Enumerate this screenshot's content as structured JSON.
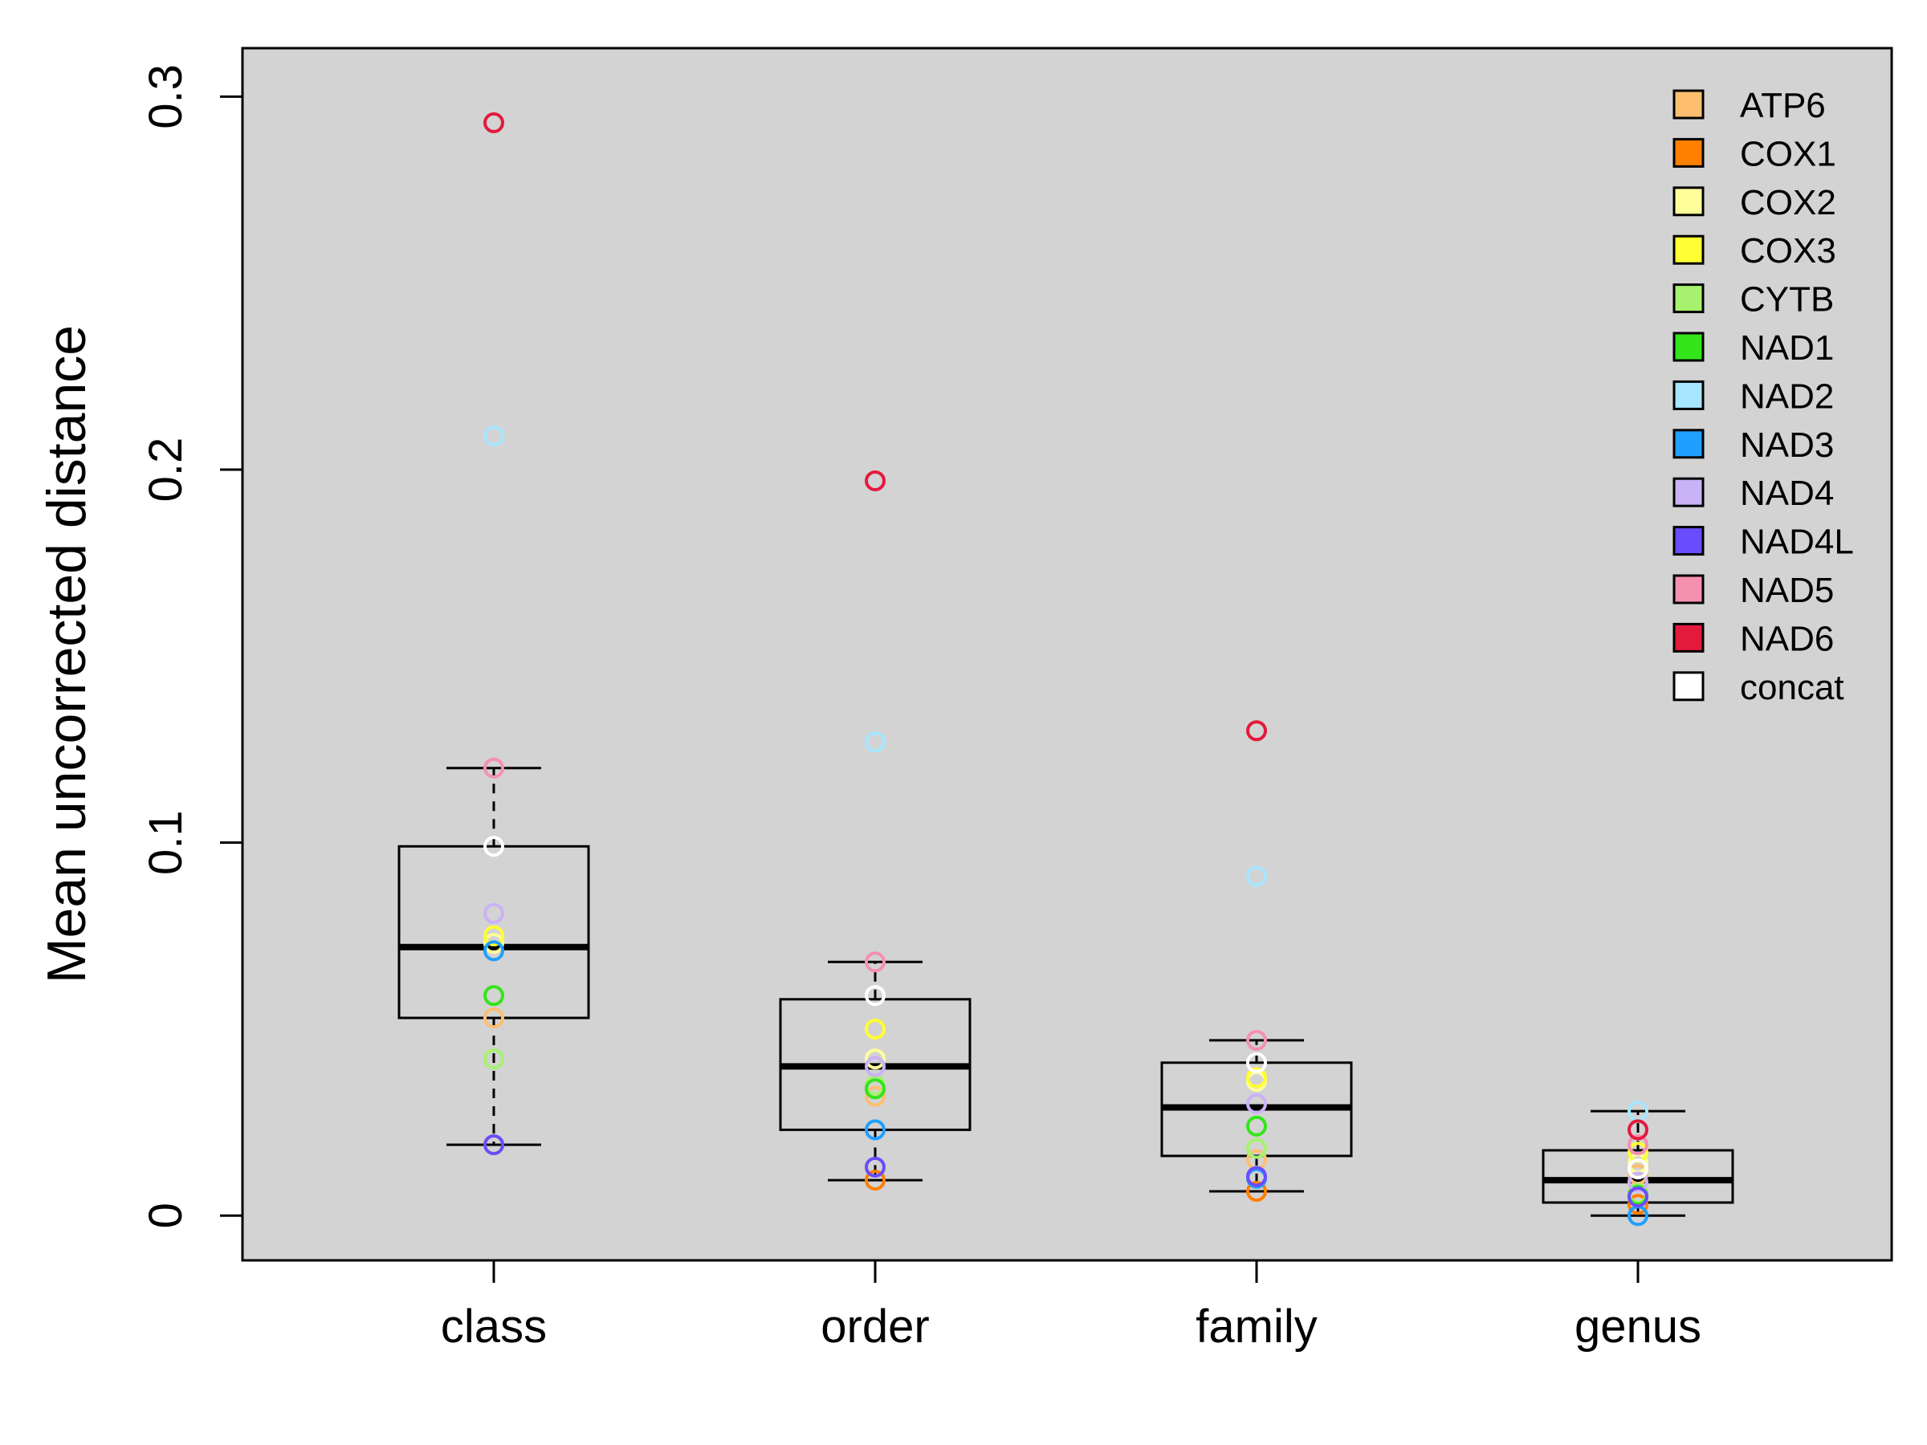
{
  "chart_data": {
    "type": "box",
    "title": "",
    "xlabel": "",
    "ylabel": "Mean uncorrected distance",
    "ylim": [
      -0.012,
      0.313
    ],
    "yticks": [
      0,
      0.1,
      0.2,
      0.3
    ],
    "ytick_labels": [
      "0",
      "0.1",
      "0.2",
      "0.3"
    ],
    "plot_background": "#d3d3d3",
    "grid": false,
    "legend_position": "top-right",
    "categories": [
      "class",
      "order",
      "family",
      "genus"
    ],
    "boxes": [
      {
        "category": "class",
        "whisker_low": 0.019,
        "q1": 0.053,
        "median": 0.072,
        "q3": 0.099,
        "whisker_high": 0.12
      },
      {
        "category": "order",
        "whisker_low": 0.0095,
        "q1": 0.023,
        "median": 0.04,
        "q3": 0.058,
        "whisker_high": 0.068
      },
      {
        "category": "family",
        "whisker_low": 0.0065,
        "q1": 0.016,
        "median": 0.029,
        "q3": 0.041,
        "whisker_high": 0.047
      },
      {
        "category": "genus",
        "whisker_low": 0.0,
        "q1": 0.0035,
        "median": 0.0095,
        "q3": 0.0175,
        "whisker_high": 0.028
      }
    ],
    "series": [
      {
        "name": "ATP6",
        "color": "#fdbf6f",
        "values": [
          0.053,
          0.032,
          0.015,
          0.011
        ]
      },
      {
        "name": "COX1",
        "color": "#ff7f00",
        "values": [
          0.019,
          0.0095,
          0.0065,
          0.003
        ]
      },
      {
        "name": "COX2",
        "color": "#ffff99",
        "values": [
          0.073,
          0.042,
          0.036,
          0.014
        ]
      },
      {
        "name": "COX3",
        "color": "#ffff33",
        "values": [
          0.075,
          0.05,
          0.037,
          0.017
        ]
      },
      {
        "name": "CYTB",
        "color": "#a6f26f",
        "values": [
          0.042,
          0.035,
          0.018,
          0.006
        ]
      },
      {
        "name": "NAD1",
        "color": "#33e51a",
        "values": [
          0.059,
          0.034,
          0.024,
          0.0055
        ]
      },
      {
        "name": "NAD2",
        "color": "#a6e6ff",
        "values": [
          0.209,
          0.127,
          0.091,
          0.028
        ]
      },
      {
        "name": "NAD3",
        "color": "#1f9fff",
        "values": [
          0.071,
          0.023,
          0.01,
          0.0
        ]
      },
      {
        "name": "NAD4",
        "color": "#cab2f6",
        "values": [
          0.081,
          0.04,
          0.03,
          0.009
        ]
      },
      {
        "name": "NAD4L",
        "color": "#6a4cff",
        "values": [
          0.019,
          0.013,
          0.0105,
          0.005
        ]
      },
      {
        "name": "NAD5",
        "color": "#f590b0",
        "values": [
          0.12,
          0.068,
          0.047,
          0.019
        ]
      },
      {
        "name": "NAD6",
        "color": "#e31a3c",
        "values": [
          0.293,
          0.197,
          0.13,
          0.023
        ]
      },
      {
        "name": "concat",
        "color": "#ffffff",
        "values": [
          0.099,
          0.059,
          0.041,
          0.0125
        ]
      }
    ]
  }
}
